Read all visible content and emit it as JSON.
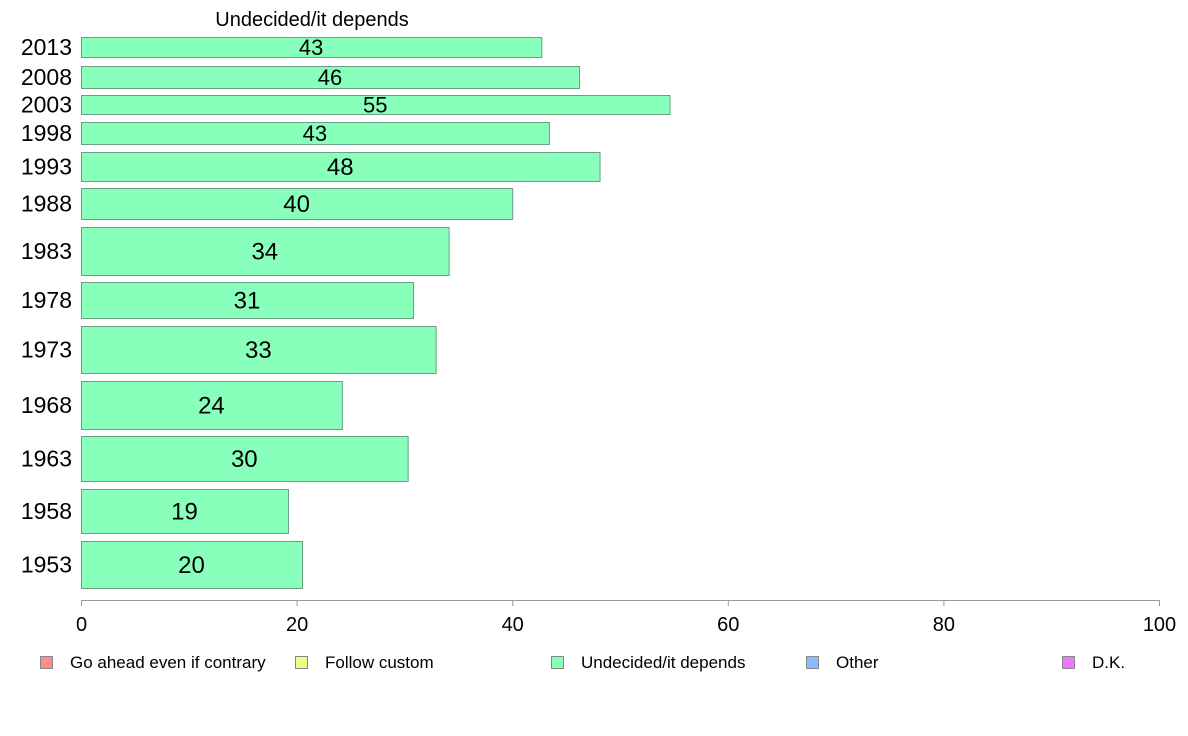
{
  "chart_data": {
    "type": "bar",
    "orientation": "horizontal",
    "title": "Undecided/it depends",
    "xlabel": "",
    "ylabel": "",
    "xlim": [
      0,
      100
    ],
    "x_ticks": [
      "0",
      "20",
      "40",
      "60",
      "80",
      "100"
    ],
    "grid": false,
    "legend_position": "bottom",
    "categories": [
      "2013",
      "2008",
      "2003",
      "1998",
      "1993",
      "1988",
      "1983",
      "1978",
      "1973",
      "1968",
      "1963",
      "1958",
      "1953"
    ],
    "series": [
      {
        "name": "Undecided/it depends",
        "color": "#88ffbb",
        "values": [
          43,
          46,
          55,
          43,
          48,
          40,
          34,
          31,
          33,
          24,
          30,
          19,
          20
        ],
        "display_values": [
          42.7,
          46.2,
          54.6,
          43.4,
          48.1,
          40,
          34.1,
          30.8,
          32.9,
          24.2,
          30.3,
          19.2,
          20.5
        ]
      }
    ],
    "legend": [
      {
        "label": "Go ahead even if contrary",
        "color": "#ff8c8c"
      },
      {
        "label": "Follow custom",
        "color": "#eeff88"
      },
      {
        "label": "Undecided/it depends",
        "color": "#88ffbb"
      },
      {
        "label": "Other",
        "color": "#88bbff"
      },
      {
        "label": "D.K.",
        "color": "#ee77ff"
      }
    ]
  }
}
